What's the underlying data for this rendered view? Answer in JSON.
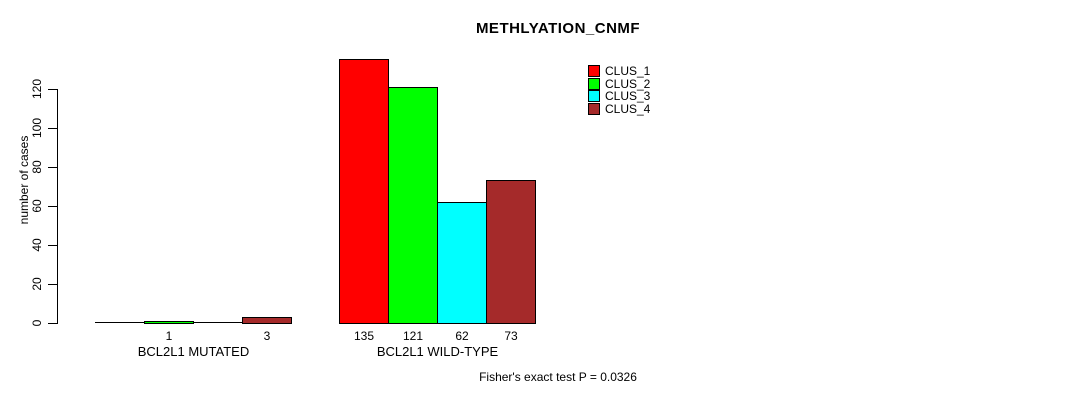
{
  "chart_data": {
    "type": "bar",
    "title": "METHLYATION_CNMF",
    "ylabel": "number of cases",
    "xlabel": "",
    "categories": [
      "BCL2L1 MUTATED",
      "BCL2L1 WILD-TYPE"
    ],
    "series": [
      {
        "name": "CLUS_1",
        "color": "#ff0000",
        "values": [
          0,
          135
        ]
      },
      {
        "name": "CLUS_2",
        "color": "#00ff00",
        "values": [
          1,
          121
        ]
      },
      {
        "name": "CLUS_3",
        "color": "#00ffff",
        "values": [
          0,
          62
        ]
      },
      {
        "name": "CLUS_4",
        "color": "#a52a2a",
        "values": [
          3,
          73
        ]
      }
    ],
    "yticks": [
      0,
      20,
      40,
      60,
      80,
      100,
      120
    ],
    "ylim": [
      0,
      137
    ],
    "grid": false,
    "legend_position": "top-right",
    "bar_value_labels_shown": true,
    "annotation": "Fisher's exact test P = 0.0326"
  }
}
